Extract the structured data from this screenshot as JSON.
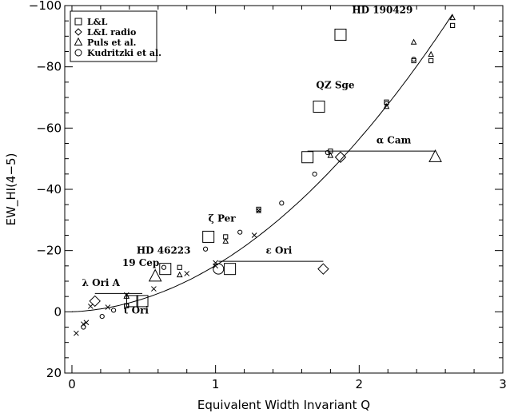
{
  "chart_data": {
    "type": "scatter",
    "xlabel": "Equivalent Width Invariant Q",
    "ylabel": "EW_HI(4−5)",
    "xlim": [
      -0.05,
      3.0
    ],
    "ylim": [
      20,
      -100
    ],
    "y_axis_inverted": true,
    "x_ticks": [
      0,
      1,
      2,
      3
    ],
    "x_tick_labels": [
      "0",
      "1",
      "2",
      "3"
    ],
    "y_ticks": [
      -100,
      -80,
      -60,
      -40,
      -20,
      0,
      20
    ],
    "y_tick_labels": [
      "−100",
      "−80",
      "−60",
      "−40",
      "−20",
      "0",
      "20"
    ],
    "legend_position": "top-left",
    "legend": [
      {
        "label": "L&L",
        "marker": "square"
      },
      {
        "label": "L&L radio",
        "marker": "diamond"
      },
      {
        "label": "Puls et al.",
        "marker": "triangle"
      },
      {
        "label": "Kudritzki et al.",
        "marker": "circle"
      }
    ],
    "series": [
      {
        "name": "L&L",
        "marker": "square",
        "points": [
          {
            "x": 1.87,
            "y": -90.5,
            "size": "large"
          },
          {
            "x": 1.72,
            "y": -67,
            "size": "large"
          },
          {
            "x": 1.64,
            "y": -50.5,
            "size": "large"
          },
          {
            "x": 0.95,
            "y": -24.5,
            "size": "large"
          },
          {
            "x": 1.1,
            "y": -14,
            "size": "large"
          },
          {
            "x": 0.65,
            "y": -14,
            "size": "large"
          },
          {
            "x": 0.49,
            "y": -3.5,
            "size": "large"
          },
          {
            "x": 0.42,
            "y": -3.5,
            "size": "large"
          },
          {
            "x": 2.65,
            "y": -93.5,
            "size": "small"
          },
          {
            "x": 2.5,
            "y": -82,
            "size": "small"
          },
          {
            "x": 2.38,
            "y": -82,
            "size": "small"
          },
          {
            "x": 2.19,
            "y": -68.5,
            "size": "small"
          },
          {
            "x": 1.8,
            "y": -52.5,
            "size": "small"
          },
          {
            "x": 1.3,
            "y": -33.5,
            "size": "small"
          },
          {
            "x": 1.07,
            "y": -24.5,
            "size": "small"
          },
          {
            "x": 0.75,
            "y": -14.5,
            "size": "small"
          },
          {
            "x": 0.38,
            "y": -2,
            "size": "small"
          }
        ]
      },
      {
        "name": "L&L radio",
        "marker": "diamond",
        "points": [
          {
            "x": 1.87,
            "y": -50.5,
            "size": "large"
          },
          {
            "x": 1.75,
            "y": -14,
            "size": "large"
          },
          {
            "x": 0.16,
            "y": -3.5,
            "size": "large"
          }
        ]
      },
      {
        "name": "Puls et al.",
        "marker": "triangle",
        "points": [
          {
            "x": 2.53,
            "y": -50.5,
            "size": "large"
          },
          {
            "x": 0.58,
            "y": -11.5,
            "size": "large"
          },
          {
            "x": 2.65,
            "y": -96,
            "size": "small"
          },
          {
            "x": 2.5,
            "y": -84,
            "size": "small"
          },
          {
            "x": 2.38,
            "y": -88,
            "size": "small"
          },
          {
            "x": 2.19,
            "y": -67,
            "size": "small"
          },
          {
            "x": 1.8,
            "y": -51,
            "size": "small"
          },
          {
            "x": 1.07,
            "y": -23,
            "size": "small"
          },
          {
            "x": 0.75,
            "y": -12,
            "size": "small"
          },
          {
            "x": 0.38,
            "y": -5,
            "size": "small"
          }
        ]
      },
      {
        "name": "Kudritzki et al.",
        "marker": "circle",
        "points": [
          {
            "x": 1.02,
            "y": -14,
            "size": "large"
          },
          {
            "x": 2.38,
            "y": -82.5,
            "size": "small"
          },
          {
            "x": 2.19,
            "y": -68,
            "size": "small"
          },
          {
            "x": 1.78,
            "y": -52,
            "size": "small"
          },
          {
            "x": 1.69,
            "y": -45,
            "size": "small"
          },
          {
            "x": 1.46,
            "y": -35.5,
            "size": "small"
          },
          {
            "x": 1.3,
            "y": -33,
            "size": "small"
          },
          {
            "x": 1.17,
            "y": -26,
            "size": "small"
          },
          {
            "x": 0.93,
            "y": -20.5,
            "size": "small"
          },
          {
            "x": 0.64,
            "y": -14.5,
            "size": "small"
          },
          {
            "x": 0.38,
            "y": -2,
            "size": "small"
          },
          {
            "x": 0.29,
            "y": -0.5,
            "size": "small"
          },
          {
            "x": 0.21,
            "y": 1.5,
            "size": "small"
          },
          {
            "x": 0.08,
            "y": 5,
            "size": "small"
          }
        ]
      },
      {
        "name": "",
        "marker": "cross",
        "points": [
          {
            "x": 1.3,
            "y": -33
          },
          {
            "x": 1.27,
            "y": -25
          },
          {
            "x": 1.0,
            "y": -16
          },
          {
            "x": 1.0,
            "y": -15
          },
          {
            "x": 0.8,
            "y": -12.5
          },
          {
            "x": 0.57,
            "y": -7.5
          },
          {
            "x": 0.38,
            "y": -5.5
          },
          {
            "x": 0.25,
            "y": -1.5
          },
          {
            "x": 0.13,
            "y": -1.8
          },
          {
            "x": 0.1,
            "y": 3.5
          },
          {
            "x": 0.08,
            "y": 4
          },
          {
            "x": 0.03,
            "y": 7
          }
        ]
      }
    ],
    "fit_curve": {
      "x_max": 2.65,
      "coefficients": [
        0.0,
        -2.1,
        -13.05
      ]
    },
    "range_bars": [
      {
        "x1": 1.64,
        "x2": 2.53,
        "y": -52.5
      },
      {
        "x1": 1.02,
        "x2": 1.75,
        "y": -16.5
      },
      {
        "x1": 0.16,
        "x2": 0.49,
        "y": -6
      }
    ],
    "annotations": [
      {
        "text": "HD 190429",
        "x": 1.95,
        "y": -97.5
      },
      {
        "text": "QZ Sge",
        "x": 1.7,
        "y": -73
      },
      {
        "text": "α Cam",
        "x": 2.12,
        "y": -55
      },
      {
        "text": "ζ Per",
        "x": 0.95,
        "y": -29.5
      },
      {
        "text": "HD 46223",
        "x": 0.45,
        "y": -19
      },
      {
        "text": "ε Ori",
        "x": 1.35,
        "y": -19
      },
      {
        "text": "19 Cep",
        "x": 0.35,
        "y": -15
      },
      {
        "text": "λ Ori A",
        "x": 0.07,
        "y": -8.5
      },
      {
        "text": "ι Ori",
        "x": 0.36,
        "y": 0.5
      }
    ]
  }
}
